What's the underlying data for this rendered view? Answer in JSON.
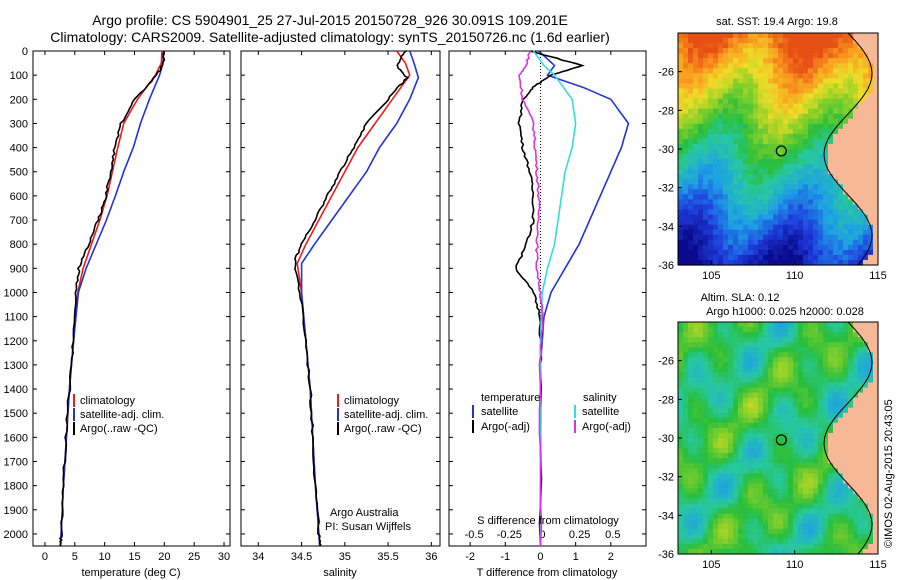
{
  "title_line1": "Argo profile: CS 5904901_25 27-Jul-2015 20150728_926 30.091S 109.201E",
  "title_line2": "Climatology: CARS2009. Satellite-adjusted climatology: synTS_20150726.nc (1.6d earlier)",
  "sst_title": "sat. SST: 19.4 Argo: 19.8",
  "sla_title1": "Altim. SLA: 0.12",
  "sla_title2": "Argo h1000: 0.025 h2000: 0.028",
  "credit": "©IMOS 02-Aug-2015 20:43:05",
  "legend": {
    "clim": "climatology",
    "sat": "satellite-adj. clim.",
    "argo": "Argo(..raw -QC)"
  },
  "legend3": {
    "temp_head": "temperature",
    "sal_head": "salinity",
    "t_sat": "satellite",
    "t_argo": "Argo(-adj)",
    "s_sat": "satellite",
    "s_argo": "Argo(-adj)"
  },
  "pi_text1": "Argo Australia",
  "pi_text2": "PI: Susan Wijffels",
  "colors": {
    "clim": "#ee1c1c",
    "sat": "#2233dd",
    "argo": "#000000",
    "s_sat": "#33dddd",
    "s_argo": "#dd33dd",
    "land": "#f6b896"
  },
  "chart_data": [
    {
      "type": "line",
      "xlabel": "temperature (deg C)",
      "ylabel": "",
      "xlim": [
        -2,
        31
      ],
      "ylim": [
        2050,
        0
      ],
      "xticks": [
        0,
        5,
        10,
        15,
        20,
        25,
        30
      ],
      "yticks": [
        0,
        100,
        200,
        300,
        400,
        500,
        600,
        700,
        800,
        900,
        1000,
        1100,
        1200,
        1300,
        1400,
        1500,
        1600,
        1700,
        1800,
        1900,
        2000
      ],
      "series": [
        {
          "name": "climatology",
          "color": "#ee1c1c",
          "points": [
            [
              19.6,
              0
            ],
            [
              19.5,
              50
            ],
            [
              18.5,
              100
            ],
            [
              15.5,
              200
            ],
            [
              13.2,
              300
            ],
            [
              12.2,
              400
            ],
            [
              11.3,
              500
            ],
            [
              10.4,
              600
            ],
            [
              9.2,
              700
            ],
            [
              7.8,
              800
            ],
            [
              6.4,
              900
            ],
            [
              5.5,
              1000
            ],
            [
              4.8,
              1200
            ],
            [
              4.1,
              1400
            ],
            [
              3.6,
              1600
            ],
            [
              3.1,
              1800
            ],
            [
              2.7,
              2000
            ],
            [
              2.6,
              2050
            ]
          ]
        },
        {
          "name": "satellite-adj. clim.",
          "color": "#2233dd",
          "points": [
            [
              19.9,
              0
            ],
            [
              19.8,
              50
            ],
            [
              19.2,
              100
            ],
            [
              17.5,
              200
            ],
            [
              16.0,
              300
            ],
            [
              14.8,
              400
            ],
            [
              13.2,
              500
            ],
            [
              11.8,
              600
            ],
            [
              10.3,
              700
            ],
            [
              8.6,
              800
            ],
            [
              6.9,
              900
            ],
            [
              5.6,
              1000
            ],
            [
              4.8,
              1200
            ],
            [
              4.1,
              1400
            ],
            [
              3.6,
              1600
            ],
            [
              3.1,
              1800
            ],
            [
              2.7,
              2000
            ],
            [
              2.6,
              2050
            ]
          ]
        },
        {
          "name": "Argo(..raw -QC)",
          "color": "#000000",
          "points": [
            [
              20.0,
              0
            ],
            [
              19.8,
              50
            ],
            [
              18.8,
              100
            ],
            [
              15.0,
              200
            ],
            [
              12.8,
              300
            ],
            [
              11.7,
              400
            ],
            [
              11.0,
              500
            ],
            [
              10.2,
              600
            ],
            [
              8.9,
              700
            ],
            [
              7.3,
              800
            ],
            [
              5.7,
              900
            ],
            [
              5.2,
              1000
            ],
            [
              4.7,
              1200
            ],
            [
              4.1,
              1400
            ],
            [
              3.5,
              1600
            ],
            [
              3.1,
              1800
            ],
            [
              2.7,
              2000
            ],
            [
              2.6,
              2050
            ]
          ]
        }
      ]
    },
    {
      "type": "line",
      "xlabel": "salinity",
      "ylabel": "",
      "xlim": [
        33.8,
        36.1
      ],
      "ylim": [
        2050,
        0
      ],
      "xticks": [
        34,
        34.5,
        35,
        35.5,
        36
      ],
      "series": [
        {
          "name": "climatology",
          "color": "#ee1c1c",
          "points": [
            [
              35.6,
              0
            ],
            [
              35.7,
              50
            ],
            [
              35.75,
              100
            ],
            [
              35.55,
              200
            ],
            [
              35.35,
              300
            ],
            [
              35.15,
              400
            ],
            [
              35.0,
              500
            ],
            [
              34.85,
              600
            ],
            [
              34.7,
              700
            ],
            [
              34.55,
              800
            ],
            [
              34.45,
              880
            ],
            [
              34.5,
              1000
            ],
            [
              34.55,
              1200
            ],
            [
              34.6,
              1400
            ],
            [
              34.63,
              1600
            ],
            [
              34.66,
              1800
            ],
            [
              34.7,
              2000
            ],
            [
              34.71,
              2050
            ]
          ]
        },
        {
          "name": "satellite-adj. clim.",
          "color": "#2233dd",
          "points": [
            [
              35.75,
              0
            ],
            [
              35.8,
              50
            ],
            [
              35.85,
              110
            ],
            [
              35.75,
              200
            ],
            [
              35.6,
              300
            ],
            [
              35.4,
              400
            ],
            [
              35.25,
              500
            ],
            [
              35.05,
              600
            ],
            [
              34.85,
              700
            ],
            [
              34.65,
              800
            ],
            [
              34.5,
              880
            ],
            [
              34.5,
              1000
            ],
            [
              34.55,
              1200
            ],
            [
              34.6,
              1400
            ],
            [
              34.63,
              1600
            ],
            [
              34.66,
              1800
            ],
            [
              34.7,
              2000
            ],
            [
              34.71,
              2050
            ]
          ]
        },
        {
          "name": "Argo(..raw -QC)",
          "color": "#000000",
          "points": [
            [
              35.7,
              0
            ],
            [
              35.6,
              60
            ],
            [
              35.72,
              110
            ],
            [
              35.5,
              200
            ],
            [
              35.25,
              300
            ],
            [
              35.1,
              400
            ],
            [
              34.95,
              500
            ],
            [
              34.8,
              600
            ],
            [
              34.65,
              700
            ],
            [
              34.5,
              800
            ],
            [
              34.42,
              870
            ],
            [
              34.48,
              1000
            ],
            [
              34.55,
              1200
            ],
            [
              34.6,
              1400
            ],
            [
              34.63,
              1600
            ],
            [
              34.66,
              1800
            ],
            [
              34.7,
              2000
            ],
            [
              34.71,
              2050
            ]
          ]
        }
      ]
    },
    {
      "type": "line",
      "xlabel": "T difference from climatology",
      "x2label": "S difference from climatology",
      "xlim": [
        -2.6,
        3
      ],
      "ylim": [
        2050,
        0
      ],
      "xticks": [
        -2,
        -1,
        0,
        1,
        2
      ],
      "x2ticks": [
        "-0.5",
        "-0.25",
        "0",
        "0.25",
        "0.5"
      ],
      "series": [
        {
          "name": "T satellite",
          "color": "#2233dd",
          "points": [
            [
              -0.05,
              0
            ],
            [
              0.4,
              60
            ],
            [
              0.2,
              100
            ],
            [
              1.2,
              150
            ],
            [
              2.0,
              200
            ],
            [
              2.5,
              300
            ],
            [
              2.3,
              400
            ],
            [
              2.0,
              500
            ],
            [
              1.7,
              600
            ],
            [
              1.4,
              700
            ],
            [
              1.1,
              800
            ],
            [
              0.7,
              900
            ],
            [
              0.3,
              1000
            ],
            [
              0.1,
              1100
            ],
            [
              0.0,
              1300
            ],
            [
              0.0,
              2050
            ]
          ]
        },
        {
          "name": "T Argo(-adj)",
          "color": "#000000",
          "points": [
            [
              -0.3,
              0
            ],
            [
              1.2,
              60
            ],
            [
              0.3,
              100
            ],
            [
              -0.2,
              150
            ],
            [
              -0.5,
              200
            ],
            [
              -0.6,
              300
            ],
            [
              -0.5,
              400
            ],
            [
              -0.3,
              500
            ],
            [
              -0.2,
              600
            ],
            [
              -0.2,
              700
            ],
            [
              -0.4,
              800
            ],
            [
              -0.7,
              900
            ],
            [
              -0.2,
              1000
            ],
            [
              0.0,
              1100
            ],
            [
              0.0,
              1300
            ],
            [
              0.0,
              2050
            ]
          ]
        },
        {
          "name": "S satellite",
          "color": "#33dddd",
          "points": [
            [
              -0.2,
              0
            ],
            [
              0.1,
              60
            ],
            [
              0.4,
              100
            ],
            [
              0.9,
              200
            ],
            [
              1.0,
              300
            ],
            [
              0.9,
              400
            ],
            [
              0.7,
              500
            ],
            [
              0.6,
              600
            ],
            [
              0.5,
              700
            ],
            [
              0.4,
              800
            ],
            [
              0.2,
              900
            ],
            [
              0.05,
              1000
            ],
            [
              0.0,
              1200
            ],
            [
              0.0,
              2050
            ]
          ]
        },
        {
          "name": "S Argo(-adj)",
          "color": "#dd33dd",
          "points": [
            [
              -0.3,
              0
            ],
            [
              -0.4,
              60
            ],
            [
              -0.6,
              100
            ],
            [
              -0.5,
              200
            ],
            [
              -0.2,
              300
            ],
            [
              -0.15,
              400
            ],
            [
              -0.1,
              500
            ],
            [
              -0.05,
              600
            ],
            [
              -0.05,
              700
            ],
            [
              -0.1,
              800
            ],
            [
              -0.1,
              900
            ],
            [
              0.0,
              1000
            ],
            [
              0.05,
              1100
            ],
            [
              0.0,
              1300
            ],
            [
              0.0,
              2050
            ]
          ]
        }
      ]
    },
    {
      "type": "heatmap",
      "title": "sat. SST: 19.4 Argo: 19.8",
      "xlim": [
        103,
        115
      ],
      "ylim": [
        -36,
        -24
      ],
      "xticks": [
        105,
        110,
        115
      ],
      "yticks": [
        -36,
        -34,
        -32,
        -30,
        -28,
        -26
      ],
      "argo_position": [
        109.2,
        -30.1
      ]
    },
    {
      "type": "heatmap",
      "title": "Altim. SLA: 0.12",
      "xlim": [
        103,
        115
      ],
      "ylim": [
        -36,
        -24
      ],
      "xticks": [
        105,
        110,
        115
      ],
      "yticks": [
        -36,
        -34,
        -32,
        -30,
        -28,
        -26
      ],
      "argo_position": [
        109.2,
        -30.1
      ]
    }
  ]
}
